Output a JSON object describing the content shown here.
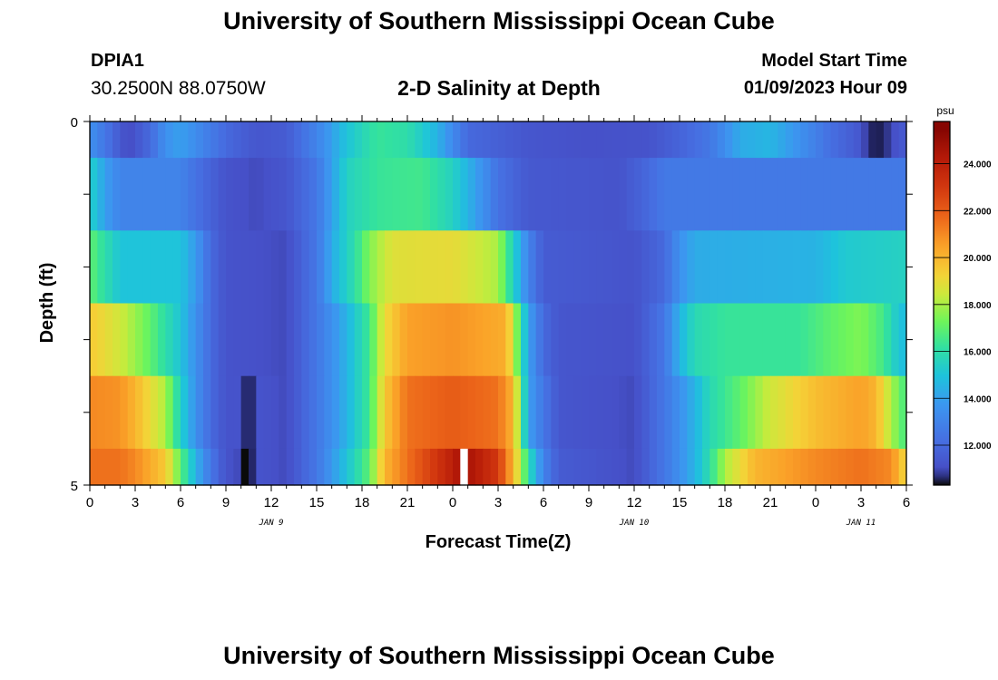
{
  "header": {
    "title": "University of Southern Mississippi Ocean Cube",
    "station_id": "DPIA1",
    "coords": "30.2500N  88.0750W",
    "chart_title": "2-D Salinity at Depth",
    "start_label": "Model Start Time",
    "start_value": "01/09/2023 Hour 09"
  },
  "footer": {
    "title": "University of Southern Mississippi Ocean Cube"
  },
  "chart_data": {
    "type": "heatmap",
    "title": "2-D Salinity at Depth",
    "xlabel": "Forecast Time(Z)",
    "ylabel": "Depth (ft)",
    "x_tick_labels": [
      "0",
      "3",
      "6",
      "9",
      "12",
      "15",
      "18",
      "21",
      "0",
      "3",
      "6",
      "9",
      "12",
      "15",
      "18",
      "21",
      "0",
      "3",
      "6"
    ],
    "date_labels": [
      {
        "hour": 12,
        "label": "JAN 9"
      },
      {
        "hour": 36,
        "label": "JAN 10"
      },
      {
        "hour": 51,
        "label": "JAN 11"
      }
    ],
    "x_range_hours": [
      0,
      54
    ],
    "y_tick_labels": [
      {
        "depth": 0,
        "label": "0"
      },
      {
        "depth": 5,
        "label": "5"
      }
    ],
    "y_range_ft": [
      0,
      5
    ],
    "colorbar": {
      "unit": "psu",
      "range": [
        10.3,
        25.8
      ],
      "ticks": [
        "12.000",
        "14.000",
        "16.000",
        "18.000",
        "20.000",
        "22.000",
        "24.000"
      ],
      "tick_values": [
        12,
        14,
        16,
        18,
        20,
        22,
        24
      ]
    },
    "layers": [
      {
        "depth_top": 0.0,
        "depth_bottom": 0.5,
        "knots": [
          [
            0,
            13.5
          ],
          [
            1,
            12.5
          ],
          [
            2.5,
            10.9
          ],
          [
            4,
            12
          ],
          [
            5,
            13.5
          ],
          [
            6,
            14
          ],
          [
            7.5,
            13
          ],
          [
            9,
            12
          ],
          [
            11,
            11.3
          ],
          [
            13,
            11.5
          ],
          [
            15,
            13
          ],
          [
            17,
            15
          ],
          [
            19,
            16.3
          ],
          [
            21,
            16
          ],
          [
            23,
            14.5
          ],
          [
            25,
            12
          ],
          [
            29,
            11.3
          ],
          [
            33,
            11.1
          ],
          [
            37,
            11.2
          ],
          [
            39,
            11.8
          ],
          [
            41,
            12.5
          ],
          [
            43,
            14.3
          ],
          [
            45,
            14.6
          ],
          [
            47,
            13.5
          ],
          [
            49,
            12.2
          ],
          [
            51,
            11.3
          ],
          [
            51.5,
            10.6
          ],
          [
            52,
            10.4
          ],
          [
            52.5,
            10.5
          ],
          [
            53,
            11
          ],
          [
            54,
            11.5
          ]
        ]
      },
      {
        "depth_top": 0.5,
        "depth_bottom": 1.5,
        "knots": [
          [
            0,
            15.5
          ],
          [
            1,
            14
          ],
          [
            2,
            13
          ],
          [
            6,
            13
          ],
          [
            7,
            12.3
          ],
          [
            9,
            11.2
          ],
          [
            11,
            11
          ],
          [
            13,
            11.3
          ],
          [
            15,
            12.5
          ],
          [
            16,
            14
          ],
          [
            17,
            15.5
          ],
          [
            19,
            16.3
          ],
          [
            22,
            16.5
          ],
          [
            24,
            15.5
          ],
          [
            26,
            13.5
          ],
          [
            27,
            12.3
          ],
          [
            29,
            11.4
          ],
          [
            35,
            11.2
          ],
          [
            37,
            12
          ],
          [
            38,
            12.6
          ],
          [
            54,
            12.6
          ]
        ]
      },
      {
        "depth_top": 1.5,
        "depth_bottom": 2.5,
        "knots": [
          [
            0,
            17
          ],
          [
            1,
            16
          ],
          [
            2,
            15
          ],
          [
            6,
            15
          ],
          [
            7,
            13.8
          ],
          [
            8,
            12
          ],
          [
            9,
            11.2
          ],
          [
            13,
            11
          ],
          [
            15,
            12.5
          ],
          [
            16,
            14.3
          ],
          [
            17.5,
            16
          ],
          [
            18.5,
            17.5
          ],
          [
            20,
            18.8
          ],
          [
            24,
            19
          ],
          [
            27,
            18
          ],
          [
            28,
            15.5
          ],
          [
            29,
            13
          ],
          [
            30,
            11.5
          ],
          [
            36,
            11.2
          ],
          [
            38,
            12
          ],
          [
            39,
            13.5
          ],
          [
            40,
            14.3
          ],
          [
            48,
            14.5
          ],
          [
            50,
            15.2
          ],
          [
            54,
            15.5
          ]
        ]
      },
      {
        "depth_top": 2.5,
        "depth_bottom": 3.5,
        "knots": [
          [
            0,
            19.5
          ],
          [
            2,
            18.5
          ],
          [
            3,
            17.8
          ],
          [
            4,
            17
          ],
          [
            5,
            16
          ],
          [
            6,
            15
          ],
          [
            7,
            13.5
          ],
          [
            8,
            12
          ],
          [
            9,
            11.2
          ],
          [
            13,
            11
          ],
          [
            15,
            12.5
          ],
          [
            17,
            14.5
          ],
          [
            18.5,
            16.5
          ],
          [
            19.5,
            19
          ],
          [
            21,
            20.5
          ],
          [
            24,
            20.8
          ],
          [
            27.5,
            20.2
          ],
          [
            28,
            18.5
          ],
          [
            29,
            14
          ],
          [
            30,
            12
          ],
          [
            31,
            11.3
          ],
          [
            36,
            11.1
          ],
          [
            38,
            12.5
          ],
          [
            39,
            14.5
          ],
          [
            40,
            15.8
          ],
          [
            42,
            16.3
          ],
          [
            47,
            16.3
          ],
          [
            49,
            17
          ],
          [
            51,
            17.5
          ],
          [
            52.5,
            16.5
          ],
          [
            53.5,
            15
          ],
          [
            54,
            14.8
          ]
        ]
      },
      {
        "depth_top": 3.5,
        "depth_bottom": 4.5,
        "knots": [
          [
            0,
            21
          ],
          [
            2,
            20.8
          ],
          [
            3,
            20
          ],
          [
            4,
            19
          ],
          [
            5,
            18
          ],
          [
            6,
            15.5
          ],
          [
            7,
            13.5
          ],
          [
            8,
            12
          ],
          [
            9,
            11.2
          ],
          [
            9.8,
            11.2
          ],
          [
            10,
            10.6
          ],
          [
            11,
            10.6
          ],
          [
            11.2,
            11.2
          ],
          [
            13,
            11
          ],
          [
            15,
            12.5
          ],
          [
            17,
            14.5
          ],
          [
            18.5,
            16.5
          ],
          [
            19.5,
            19.5
          ],
          [
            21,
            21.5
          ],
          [
            24,
            22
          ],
          [
            27,
            21.5
          ],
          [
            28,
            20
          ],
          [
            28.5,
            17
          ],
          [
            29,
            14
          ],
          [
            30,
            12.5
          ],
          [
            31,
            11.3
          ],
          [
            36,
            11
          ],
          [
            38,
            12.5
          ],
          [
            40,
            14.5
          ],
          [
            41,
            15.8
          ],
          [
            43,
            17
          ],
          [
            45,
            18.5
          ],
          [
            48,
            19.8
          ],
          [
            51,
            20.5
          ],
          [
            52,
            20
          ],
          [
            53,
            18
          ],
          [
            54,
            16.5
          ]
        ]
      },
      {
        "depth_top": 4.5,
        "depth_bottom": 5.0,
        "knots": [
          [
            0,
            21.5
          ],
          [
            2,
            21.5
          ],
          [
            3,
            21
          ],
          [
            5,
            19.5
          ],
          [
            6,
            17
          ],
          [
            7,
            14.5
          ],
          [
            8,
            12.5
          ],
          [
            9,
            11.2
          ],
          [
            9.8,
            11
          ],
          [
            10,
            10.4
          ],
          [
            10.4,
            10.3
          ],
          [
            10.5,
            10.3
          ],
          [
            10.6,
            10.4
          ],
          [
            11,
            10.8
          ],
          [
            11.2,
            11.2
          ],
          [
            13,
            11
          ],
          [
            15,
            12.5
          ],
          [
            17,
            15
          ],
          [
            18.5,
            17
          ],
          [
            19.5,
            20
          ],
          [
            21,
            21.5
          ],
          [
            24,
            24
          ],
          [
            24.4,
            24.5
          ],
          [
            24.5,
            25.8
          ],
          [
            25,
            25.8
          ],
          [
            25.1,
            24.5
          ],
          [
            27,
            23
          ],
          [
            28,
            20
          ],
          [
            29,
            16
          ],
          [
            30,
            13
          ],
          [
            31,
            11.5
          ],
          [
            36,
            11
          ],
          [
            38,
            12.5
          ],
          [
            40,
            14.5
          ],
          [
            41,
            16
          ],
          [
            42,
            18
          ],
          [
            44,
            20
          ],
          [
            48,
            21
          ],
          [
            51,
            21.5
          ],
          [
            53,
            21
          ],
          [
            54,
            19
          ]
        ]
      }
    ]
  }
}
